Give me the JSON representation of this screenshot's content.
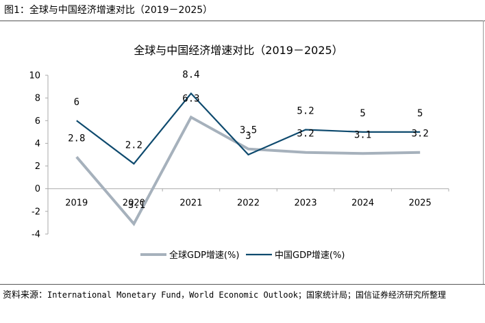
{
  "figure_label": "图1：全球与中国经济增速对比（2019－2025）",
  "source": {
    "prefix": "资料来源：",
    "text": "International Monetary Fund，World Economic Outlook；国家统计局；国信证券经济研究所整理"
  },
  "chart_data": {
    "type": "line",
    "title": "全球与中国经济增速对比（2019－2025）",
    "xlabel": "",
    "ylabel": "",
    "categories": [
      "2019",
      "2020",
      "2021",
      "2022",
      "2023",
      "2024",
      "2025"
    ],
    "ylim": [
      -4,
      10
    ],
    "yticks": [
      -4,
      -2,
      0,
      2,
      4,
      6,
      8,
      10
    ],
    "ytick_labels": [
      "-4",
      "-2",
      "0",
      "2",
      "4",
      "6",
      "8",
      "10"
    ],
    "grid": false,
    "legend_position": "bottom",
    "series": [
      {
        "name": "全球GDP增速(%)",
        "color": "#a6b1bc",
        "values": [
          2.8,
          -3.1,
          6.3,
          3.5,
          3.2,
          3.1,
          3.2
        ],
        "labels": [
          "2.8",
          "-3.1",
          "6.3",
          "3.5",
          "3.2",
          "3.1",
          "3.2"
        ]
      },
      {
        "name": "中国GDP增速(%)",
        "color": "#0e4a6e",
        "values": [
          6,
          2.2,
          8.4,
          3,
          5.2,
          5,
          5
        ],
        "labels": [
          "6",
          "2.2",
          "8.4",
          "3",
          "5.2",
          "5",
          "5"
        ]
      }
    ]
  }
}
